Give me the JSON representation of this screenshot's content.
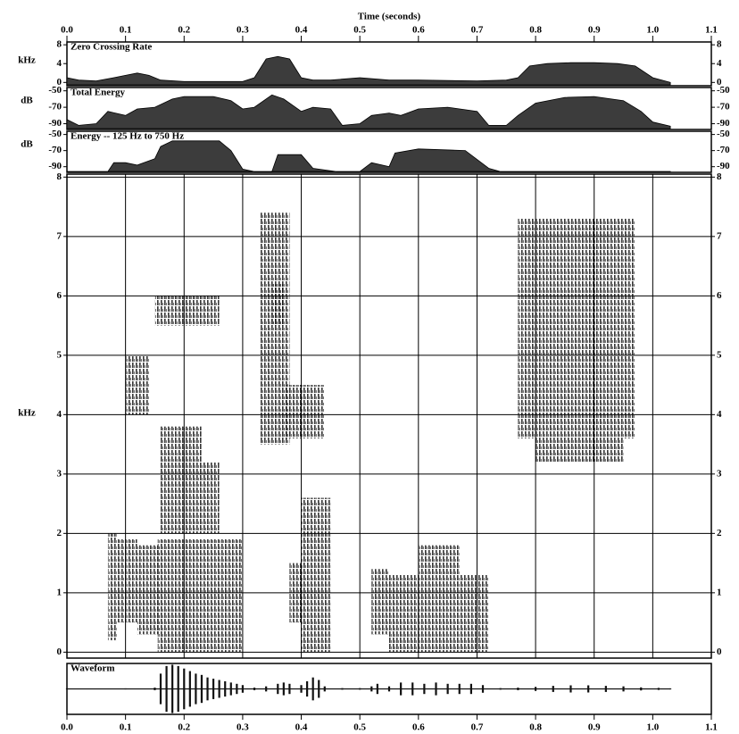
{
  "time_axis": {
    "title": "Time (seconds)",
    "xlim": [
      0,
      1.1
    ],
    "xticks": [
      {
        "value": 0,
        "label": "0.0"
      },
      0.1,
      0.2,
      0.3,
      0.4,
      0.5,
      0.6,
      0.7,
      0.8,
      0.9,
      {
        "value": 1,
        "label": "1.0"
      },
      1.1
    ]
  },
  "chart_data": [
    {
      "type": "area",
      "title": "Zero Crossing Rate",
      "ylabel": "kHz",
      "color": "#3c3c3c",
      "ylim": [
        -0.7,
        8.6
      ],
      "yticks": [
        0,
        4,
        8
      ],
      "x": [
        0,
        0.02,
        0.05,
        0.08,
        0.1,
        0.12,
        0.14,
        0.16,
        0.2,
        0.3,
        0.32,
        0.34,
        0.36,
        0.38,
        0.4,
        0.42,
        0.45,
        0.5,
        0.55,
        0.6,
        0.7,
        0.75,
        0.77,
        0.79,
        0.82,
        0.86,
        0.9,
        0.94,
        0.97,
        1.0,
        1.03
      ],
      "values": [
        1,
        0.5,
        0.3,
        1,
        1.5,
        2,
        1.5,
        0.5,
        0.2,
        0.2,
        1,
        5,
        5.5,
        5,
        1,
        0.5,
        0.5,
        1,
        0.5,
        0.5,
        0.3,
        0.5,
        1,
        3.5,
        4,
        4.2,
        4.2,
        4,
        3.5,
        1,
        0
      ]
    },
    {
      "type": "area",
      "title": "Total Energy",
      "ylabel": "dB",
      "color": "#3c3c3c",
      "ylim": [
        -97,
        -46
      ],
      "yticks": [
        -50,
        -70,
        -90
      ],
      "x": [
        0,
        0.02,
        0.05,
        0.07,
        0.1,
        0.12,
        0.15,
        0.18,
        0.2,
        0.25,
        0.28,
        0.3,
        0.32,
        0.35,
        0.37,
        0.4,
        0.42,
        0.45,
        0.47,
        0.5,
        0.52,
        0.55,
        0.57,
        0.6,
        0.65,
        0.7,
        0.72,
        0.75,
        0.77,
        0.8,
        0.85,
        0.9,
        0.95,
        0.98,
        1.0,
        1.03
      ],
      "values": [
        -85,
        -92,
        -90,
        -75,
        -80,
        -72,
        -70,
        -60,
        -57,
        -57,
        -62,
        -72,
        -70,
        -55,
        -60,
        -75,
        -70,
        -72,
        -92,
        -90,
        -80,
        -77,
        -80,
        -72,
        -70,
        -75,
        -92,
        -92,
        -80,
        -65,
        -58,
        -57,
        -62,
        -75,
        -88,
        -93
      ]
    },
    {
      "type": "area",
      "title": "Energy -- 125 Hz to 750 Hz",
      "ylabel": "dB",
      "color": "#3c3c3c",
      "ylim": [
        -97,
        -46
      ],
      "yticks": [
        -50,
        -70,
        -90
      ],
      "x": [
        0,
        0.07,
        0.08,
        0.1,
        0.12,
        0.15,
        0.16,
        0.18,
        0.26,
        0.28,
        0.3,
        0.32,
        0.35,
        0.36,
        0.4,
        0.42,
        0.46,
        0.5,
        0.52,
        0.55,
        0.56,
        0.6,
        0.68,
        0.72,
        0.74,
        1.03
      ],
      "values": [
        -96,
        -96,
        -85,
        -85,
        -88,
        -80,
        -65,
        -58,
        -58,
        -70,
        -93,
        -96,
        -96,
        -75,
        -75,
        -92,
        -96,
        -96,
        -85,
        -90,
        -73,
        -68,
        -70,
        -92,
        -96,
        -96
      ]
    },
    {
      "type": "spectrogram",
      "ylabel": "kHz",
      "color": "#1a1a1a",
      "grid": true,
      "ylim": [
        -0.1,
        8.05
      ],
      "yticks": [
        0,
        1,
        2,
        3,
        4,
        5,
        6,
        7,
        8
      ],
      "regions": [
        [
          0.07,
          0.085,
          0.2,
          2.0
        ],
        [
          0.085,
          0.12,
          0.5,
          1.9
        ],
        [
          0.12,
          0.16,
          0.3,
          1.8
        ],
        [
          0.155,
          0.3,
          0.0,
          1.9
        ],
        [
          0.16,
          0.23,
          2.0,
          3.8
        ],
        [
          0.23,
          0.26,
          2.0,
          3.2
        ],
        [
          0.1,
          0.14,
          4.0,
          5.0
        ],
        [
          0.15,
          0.26,
          5.5,
          6.0
        ],
        [
          0.33,
          0.38,
          3.5,
          7.4
        ],
        [
          0.37,
          0.44,
          3.6,
          4.5
        ],
        [
          0.35,
          0.37,
          5.5,
          6.2
        ],
        [
          0.4,
          0.45,
          0.0,
          2.6
        ],
        [
          0.38,
          0.4,
          0.5,
          1.5
        ],
        [
          0.52,
          0.55,
          0.3,
          1.4
        ],
        [
          0.55,
          0.72,
          0.0,
          1.3
        ],
        [
          0.6,
          0.67,
          1.3,
          1.8
        ],
        [
          0.77,
          0.97,
          3.6,
          7.3
        ],
        [
          0.8,
          0.95,
          3.2,
          3.6
        ]
      ]
    },
    {
      "type": "waveform",
      "title": "Waveform",
      "color": "#111111",
      "ylim": [
        -1,
        1
      ],
      "x": [
        0.0,
        0.1,
        0.15,
        0.16,
        0.17,
        0.18,
        0.19,
        0.2,
        0.21,
        0.22,
        0.23,
        0.24,
        0.25,
        0.26,
        0.27,
        0.28,
        0.29,
        0.3,
        0.32,
        0.34,
        0.36,
        0.37,
        0.38,
        0.4,
        0.41,
        0.42,
        0.43,
        0.44,
        0.47,
        0.5,
        0.52,
        0.53,
        0.55,
        0.57,
        0.59,
        0.61,
        0.63,
        0.65,
        0.67,
        0.69,
        0.71,
        0.74,
        0.77,
        0.8,
        0.83,
        0.86,
        0.89,
        0.92,
        0.95,
        0.98,
        1.01,
        1.03
      ],
      "values": [
        0.02,
        0.02,
        0.05,
        0.6,
        0.9,
        0.95,
        0.9,
        0.8,
        0.7,
        0.6,
        0.55,
        0.45,
        0.4,
        0.35,
        0.3,
        0.25,
        0.2,
        0.15,
        0.05,
        0.1,
        0.2,
        0.25,
        0.2,
        0.15,
        0.3,
        0.45,
        0.35,
        0.1,
        0.03,
        0.03,
        0.1,
        0.2,
        0.1,
        0.25,
        0.25,
        0.2,
        0.25,
        0.2,
        0.2,
        0.2,
        0.15,
        0.03,
        0.05,
        0.08,
        0.12,
        0.14,
        0.14,
        0.12,
        0.1,
        0.06,
        0.04,
        0.02
      ]
    }
  ]
}
